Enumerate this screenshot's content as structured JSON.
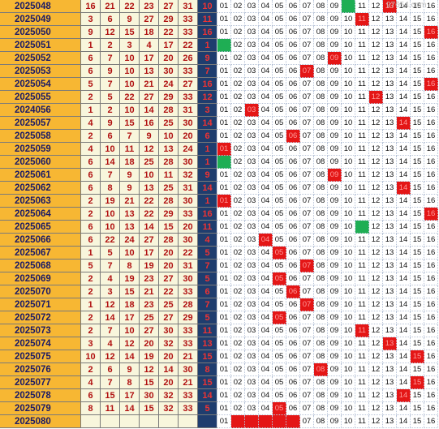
{
  "watermark": "97654.com",
  "colors": {
    "period_bg": "#f7b733",
    "red_text": "#b01010",
    "blue_bg": "#1f3d6e",
    "hit_red": "#e41616",
    "hit_green": "#1fae54"
  },
  "rows": [
    {
      "period": "2025048",
      "reds": [
        "16",
        "21",
        "22",
        "23",
        "27",
        "31"
      ],
      "blue": "10",
      "hits": [
        13
      ],
      "greens": [
        10
      ]
    },
    {
      "period": "2025049",
      "reds": [
        "3",
        "6",
        "9",
        "27",
        "29",
        "33"
      ],
      "blue": "11",
      "hits": [
        11
      ],
      "greens": []
    },
    {
      "period": "2025050",
      "reds": [
        "9",
        "12",
        "15",
        "18",
        "22",
        "33"
      ],
      "blue": "16",
      "hits": [
        16
      ],
      "greens": []
    },
    {
      "period": "2025051",
      "reds": [
        "1",
        "2",
        "3",
        "4",
        "17",
        "22"
      ],
      "blue": "1",
      "hits": [],
      "greens": [
        1
      ]
    },
    {
      "period": "2025052",
      "reds": [
        "6",
        "7",
        "10",
        "17",
        "20",
        "26"
      ],
      "blue": "9",
      "hits": [
        9
      ],
      "greens": []
    },
    {
      "period": "2025053",
      "reds": [
        "6",
        "9",
        "10",
        "13",
        "30",
        "33"
      ],
      "blue": "7",
      "hits": [
        7
      ],
      "greens": []
    },
    {
      "period": "2025054",
      "reds": [
        "5",
        "7",
        "10",
        "21",
        "24",
        "27"
      ],
      "blue": "16",
      "hits": [
        16
      ],
      "greens": []
    },
    {
      "period": "2025055",
      "reds": [
        "2",
        "5",
        "22",
        "27",
        "29",
        "33"
      ],
      "blue": "12",
      "hits": [
        12
      ],
      "greens": []
    },
    {
      "period": "2024056",
      "reds": [
        "1",
        "2",
        "10",
        "14",
        "28",
        "31"
      ],
      "blue": "3",
      "hits": [
        3
      ],
      "greens": []
    },
    {
      "period": "2025057",
      "reds": [
        "4",
        "9",
        "15",
        "16",
        "25",
        "30"
      ],
      "blue": "14",
      "hits": [
        14
      ],
      "greens": []
    },
    {
      "period": "2025058",
      "reds": [
        "2",
        "6",
        "7",
        "9",
        "10",
        "20"
      ],
      "blue": "6",
      "hits": [
        6
      ],
      "greens": []
    },
    {
      "period": "2025059",
      "reds": [
        "4",
        "10",
        "11",
        "12",
        "13",
        "24"
      ],
      "blue": "1",
      "hits": [
        1
      ],
      "greens": []
    },
    {
      "period": "2025060",
      "reds": [
        "6",
        "14",
        "18",
        "25",
        "28",
        "30"
      ],
      "blue": "1",
      "hits": [],
      "greens": [
        1
      ]
    },
    {
      "period": "2025061",
      "reds": [
        "6",
        "7",
        "9",
        "10",
        "11",
        "32"
      ],
      "blue": "9",
      "hits": [
        9
      ],
      "greens": []
    },
    {
      "period": "2025062",
      "reds": [
        "6",
        "8",
        "9",
        "13",
        "25",
        "31"
      ],
      "blue": "14",
      "hits": [
        14
      ],
      "greens": []
    },
    {
      "period": "2025063",
      "reds": [
        "2",
        "19",
        "21",
        "22",
        "28",
        "30"
      ],
      "blue": "1",
      "hits": [
        1
      ],
      "greens": []
    },
    {
      "period": "2025064",
      "reds": [
        "2",
        "10",
        "13",
        "22",
        "29",
        "33"
      ],
      "blue": "16",
      "hits": [
        16
      ],
      "greens": []
    },
    {
      "period": "2025065",
      "reds": [
        "6",
        "10",
        "13",
        "14",
        "15",
        "20"
      ],
      "blue": "11",
      "hits": [],
      "greens": [
        11
      ]
    },
    {
      "period": "2025066",
      "reds": [
        "6",
        "22",
        "24",
        "27",
        "28",
        "30"
      ],
      "blue": "4",
      "hits": [
        4
      ],
      "greens": []
    },
    {
      "period": "2025067",
      "reds": [
        "1",
        "5",
        "10",
        "17",
        "20",
        "22"
      ],
      "blue": "5",
      "hits": [
        5
      ],
      "greens": []
    },
    {
      "period": "2025068",
      "reds": [
        "5",
        "7",
        "8",
        "19",
        "20",
        "31"
      ],
      "blue": "7",
      "hits": [
        7
      ],
      "greens": []
    },
    {
      "period": "2025069",
      "reds": [
        "2",
        "4",
        "19",
        "23",
        "27",
        "30"
      ],
      "blue": "5",
      "hits": [
        5
      ],
      "greens": []
    },
    {
      "period": "2025070",
      "reds": [
        "2",
        "3",
        "15",
        "21",
        "22",
        "33"
      ],
      "blue": "6",
      "hits": [
        6
      ],
      "greens": []
    },
    {
      "period": "2025071",
      "reds": [
        "1",
        "12",
        "18",
        "23",
        "25",
        "28"
      ],
      "blue": "7",
      "hits": [
        7
      ],
      "greens": []
    },
    {
      "period": "2025072",
      "reds": [
        "2",
        "14",
        "17",
        "25",
        "27",
        "29"
      ],
      "blue": "5",
      "hits": [
        5
      ],
      "greens": []
    },
    {
      "period": "2025073",
      "reds": [
        "2",
        "7",
        "10",
        "27",
        "30",
        "33"
      ],
      "blue": "11",
      "hits": [
        11
      ],
      "greens": []
    },
    {
      "period": "2025074",
      "reds": [
        "3",
        "4",
        "12",
        "20",
        "32",
        "33"
      ],
      "blue": "13",
      "hits": [
        13
      ],
      "greens": []
    },
    {
      "period": "2025075",
      "reds": [
        "10",
        "12",
        "14",
        "19",
        "20",
        "21"
      ],
      "blue": "15",
      "hits": [
        15
      ],
      "greens": []
    },
    {
      "period": "2025076",
      "reds": [
        "2",
        "6",
        "9",
        "12",
        "14",
        "30"
      ],
      "blue": "8",
      "hits": [
        8
      ],
      "greens": []
    },
    {
      "period": "2025077",
      "reds": [
        "4",
        "7",
        "8",
        "15",
        "20",
        "21"
      ],
      "blue": "15",
      "hits": [
        15
      ],
      "greens": []
    },
    {
      "period": "2025078",
      "reds": [
        "6",
        "15",
        "17",
        "30",
        "32",
        "33"
      ],
      "blue": "14",
      "hits": [
        14
      ],
      "greens": []
    },
    {
      "period": "2025079",
      "reds": [
        "8",
        "11",
        "14",
        "15",
        "32",
        "33"
      ],
      "blue": "5",
      "hits": [
        5
      ],
      "greens": []
    },
    {
      "period": "2025080",
      "reds": [],
      "blue": "",
      "hits": [
        2,
        3,
        4,
        5,
        6
      ],
      "greens": [],
      "partial": true
    }
  ]
}
